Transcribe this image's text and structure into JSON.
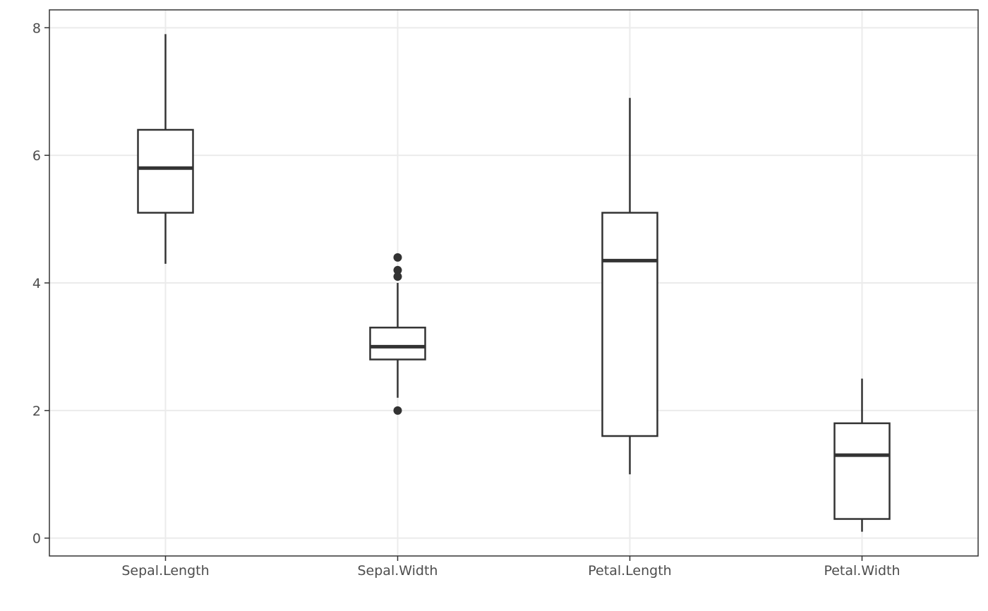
{
  "chart_data": {
    "type": "box",
    "title": "",
    "xlabel": "",
    "ylabel": "",
    "ylim": [
      -0.28,
      8.28
    ],
    "yticks": [
      0,
      2,
      4,
      6,
      8
    ],
    "grid": true,
    "categories": [
      "Sepal.Length",
      "Sepal.Width",
      "Petal.Length",
      "Petal.Width"
    ],
    "boxes": [
      {
        "category": "Sepal.Length",
        "min": 4.3,
        "q1": 5.1,
        "median": 5.8,
        "q3": 6.4,
        "max": 7.9,
        "outliers": []
      },
      {
        "category": "Sepal.Width",
        "min": 2.2,
        "q1": 2.8,
        "median": 3.0,
        "q3": 3.3,
        "max": 4.0,
        "outliers": [
          4.4,
          4.2,
          4.1,
          2.0
        ]
      },
      {
        "category": "Petal.Length",
        "min": 1.0,
        "q1": 1.6,
        "median": 4.35,
        "q3": 5.1,
        "max": 6.9,
        "outliers": []
      },
      {
        "category": "Petal.Width",
        "min": 0.1,
        "q1": 0.3,
        "median": 1.3,
        "q3": 1.8,
        "max": 2.5,
        "outliers": []
      }
    ],
    "colors": {
      "box_line": "#333333",
      "box_fill": "#ffffff",
      "grid": "#ebebeb",
      "text": "#4d4d4d"
    }
  }
}
